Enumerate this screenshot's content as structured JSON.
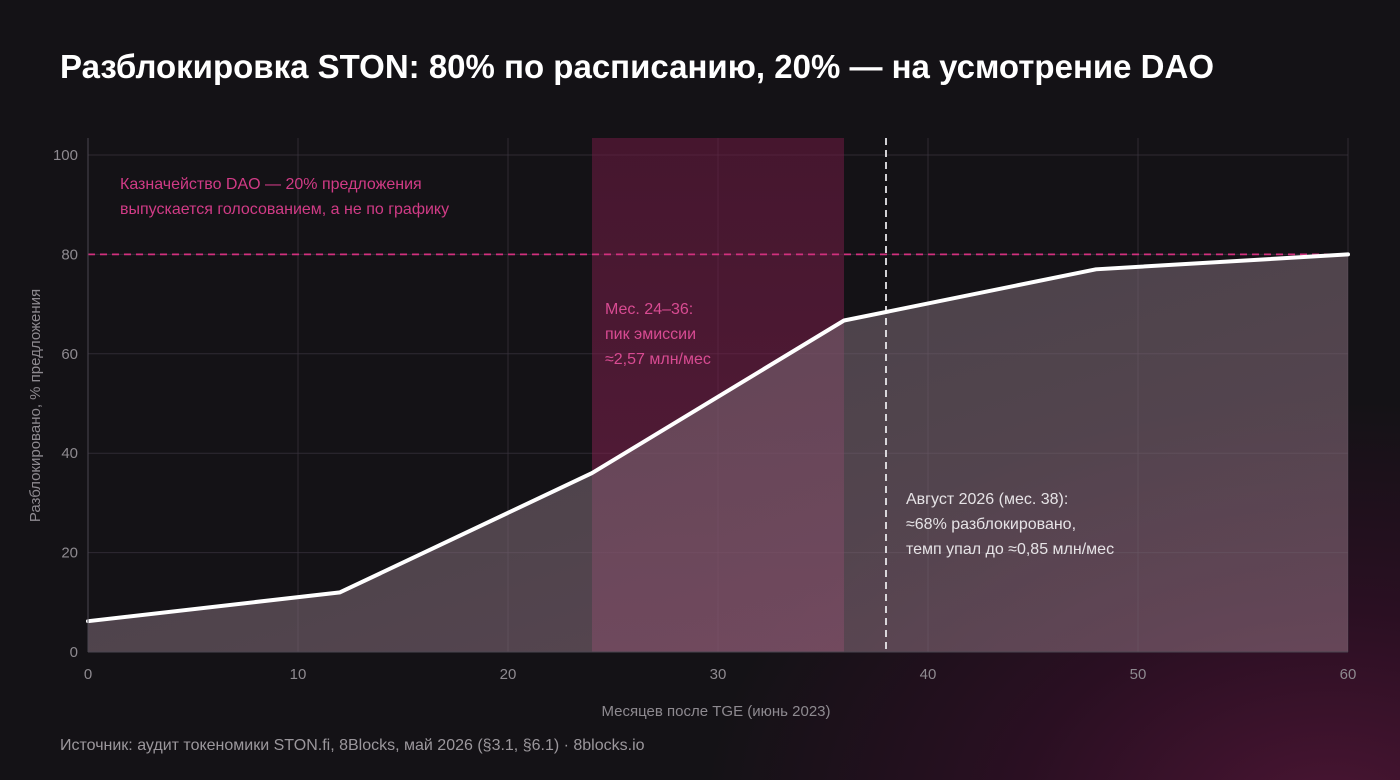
{
  "title": "Разблокировка STON: 80% по расписанию, 20% — на усмотрение DAO",
  "source": "Источник: аудит токеномики STON.fi, 8Blocks, май 2026 (§3.1, §6.1) · 8blocks.io",
  "colors": {
    "line": "#ffffff",
    "area": "#8a7f8a",
    "accent_pink": "#d1307e",
    "highlight_band": "#7a1f4a",
    "grid": "#3a3540"
  },
  "chart_data": {
    "type": "area",
    "xlabel": "Месяцев после TGE (июнь 2023)",
    "ylabel": "Разблокировано, % предложения",
    "xlim": [
      0,
      60
    ],
    "ylim": [
      0,
      100
    ],
    "x_ticks": [
      0,
      10,
      20,
      30,
      40,
      50,
      60
    ],
    "y_ticks": [
      0,
      20,
      40,
      60,
      80,
      100
    ],
    "grid": true,
    "series": [
      {
        "points": [
          {
            "x": 0,
            "y": 6.2
          },
          {
            "x": 12,
            "y": 12
          },
          {
            "x": 24,
            "y": 36
          },
          {
            "x": 36,
            "y": 66.7
          },
          {
            "x": 48,
            "y": 77
          },
          {
            "x": 60,
            "y": 80
          }
        ]
      }
    ],
    "reference_line": {
      "y": 80,
      "style": "dashed"
    },
    "highlight_band": {
      "x_start": 24,
      "x_end": 36
    },
    "marker_line": {
      "x": 38,
      "style": "dashed"
    },
    "annotations": {
      "dao": [
        "Казначейство DAO — 20% предложения",
        "выпускается голосованием, а не по графику"
      ],
      "peak": [
        "Мес. 24–36:",
        "пик эмиссии",
        "≈2,57 млн/мес"
      ],
      "august": [
        "Август 2026 (мес. 38):",
        "≈68% разблокировано,",
        "темп упал до ≈0,85 млн/мес"
      ]
    }
  }
}
